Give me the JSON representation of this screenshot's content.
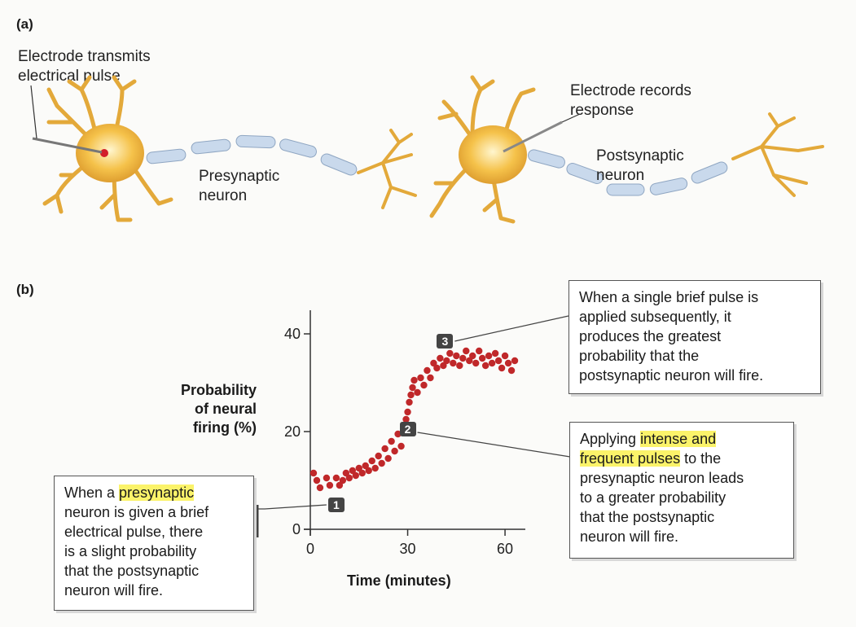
{
  "panel_a": {
    "label": "(a)",
    "electrode_transmit": [
      "Electrode transmits",
      "electrical pulse"
    ],
    "electrode_record": [
      "Electrode records",
      "response"
    ],
    "presynaptic": [
      "Presynaptic",
      "neuron"
    ],
    "postsynaptic": [
      "Postsynaptic",
      "neuron"
    ]
  },
  "panel_b": {
    "label": "(b)",
    "ylabel_lines": [
      "Probability",
      "of neural",
      "firing (%)"
    ],
    "xlabel": "Time (minutes)",
    "markers": [
      "1",
      "2",
      "3"
    ],
    "callout_1": {
      "pre": "When a ",
      "highlight": "presynaptic",
      "post_lines": [
        "neuron is given a brief",
        "electrical pulse, there",
        "is a slight probability",
        "that the postsynaptic",
        "neuron will fire."
      ]
    },
    "callout_2": {
      "pre": "Applying ",
      "highlight_1": "intense and",
      "highlight_2": "frequent pulses",
      "post_first": " to the",
      "post_lines": [
        "presynaptic neuron leads",
        "to a greater probability",
        "that the postsynaptic",
        "neuron will fire."
      ]
    },
    "callout_3": {
      "lines": [
        "When a single brief pulse is",
        "applied subsequently, it",
        "produces the greatest",
        "probability that the",
        "postsynaptic neuron will fire."
      ]
    }
  },
  "colors": {
    "dots": "#c0282a",
    "soma": "#f0b53a",
    "myelin": "#c9d9ec",
    "highlight": "#fbf36a",
    "marker": "#444444"
  },
  "chart_data": {
    "type": "scatter",
    "xlabel": "Time (minutes)",
    "ylabel": "Probability of neural firing (%)",
    "xlim": [
      0,
      65
    ],
    "ylim": [
      0,
      42
    ],
    "xticks": [
      0,
      30,
      60
    ],
    "yticks": [
      0,
      20,
      40
    ],
    "series": [
      {
        "points": [
          [
            1,
            11.5
          ],
          [
            2,
            10
          ],
          [
            3,
            8.5
          ],
          [
            5,
            10.5
          ],
          [
            6,
            9
          ],
          [
            8,
            10.5
          ],
          [
            9,
            9
          ],
          [
            10,
            10
          ],
          [
            11,
            11.5
          ],
          [
            12,
            10.5
          ],
          [
            13,
            12
          ],
          [
            14,
            11
          ],
          [
            15,
            12.5
          ],
          [
            16,
            11.5
          ],
          [
            17,
            13
          ],
          [
            18,
            12
          ],
          [
            19,
            14
          ],
          [
            20,
            12.5
          ],
          [
            21,
            15
          ],
          [
            22,
            13.5
          ],
          [
            23,
            16.5
          ],
          [
            24,
            14.5
          ],
          [
            25,
            18
          ],
          [
            26,
            16
          ],
          [
            27,
            19.5
          ],
          [
            28,
            17
          ],
          [
            29,
            21
          ],
          [
            29.5,
            22.5
          ],
          [
            30,
            24
          ],
          [
            30.5,
            26
          ],
          [
            31,
            27.5
          ],
          [
            31.5,
            29
          ],
          [
            32,
            30.5
          ],
          [
            33,
            28
          ],
          [
            34,
            31
          ],
          [
            35,
            29.5
          ],
          [
            36,
            32.5
          ],
          [
            37,
            31
          ],
          [
            38,
            34
          ],
          [
            39,
            33
          ],
          [
            40,
            35
          ],
          [
            41,
            33.5
          ],
          [
            42,
            34.5
          ],
          [
            43,
            36
          ],
          [
            44,
            34
          ],
          [
            45,
            35.5
          ],
          [
            46,
            33.5
          ],
          [
            47,
            35
          ],
          [
            48,
            36.5
          ],
          [
            49,
            34.5
          ],
          [
            50,
            35.5
          ],
          [
            51,
            34
          ],
          [
            52,
            36.5
          ],
          [
            53,
            35
          ],
          [
            54,
            33.5
          ],
          [
            55,
            35.5
          ],
          [
            56,
            34
          ],
          [
            57,
            36
          ],
          [
            58,
            34.5
          ],
          [
            59,
            33
          ],
          [
            60,
            35.5
          ],
          [
            61,
            34
          ],
          [
            62,
            32.5
          ],
          [
            63,
            34.5
          ]
        ]
      }
    ],
    "annotations": [
      {
        "label": "1",
        "x": 8,
        "y": 5
      },
      {
        "label": "2",
        "x": 30,
        "y": 20.5
      },
      {
        "label": "3",
        "x": 41.5,
        "y": 38.5
      }
    ]
  }
}
